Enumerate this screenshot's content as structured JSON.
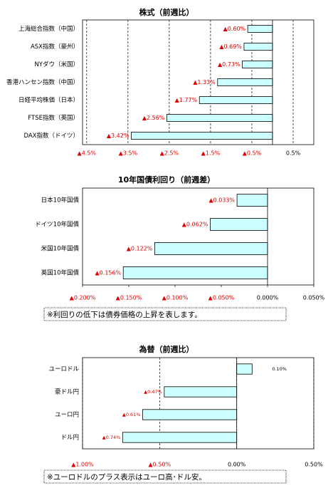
{
  "chart_data": [
    {
      "type": "bar",
      "title": "株式（前週比）",
      "orientation": "horizontal",
      "categories": [
        "上海総合指数（中国）",
        "ASX指数（豪州）",
        "NYダウ（米国）",
        "香港ハンセン指数（中国）",
        "日経平均株価（日本）",
        "FTSE指数（英国）",
        "DAX指数（ドイツ）"
      ],
      "values": [
        -0.6,
        -0.69,
        -0.73,
        -1.33,
        -1.77,
        -2.56,
        -3.42
      ],
      "value_labels": [
        "▲0.60%",
        "▲0.69%",
        "▲0.73%",
        "▲1.33%",
        "▲1.77%",
        "▲2.56%",
        "▲3.42%"
      ],
      "color": "#ccffff",
      "xlim": [
        -4.6,
        1.0
      ],
      "xticks": [
        {
          "value": -4.5,
          "label": "▲4.5%"
        },
        {
          "value": -3.5,
          "label": "▲3.5%"
        },
        {
          "value": -2.5,
          "label": "▲2.5%"
        },
        {
          "value": -1.5,
          "label": "▲1.5%"
        },
        {
          "value": -0.5,
          "label": "▲0.5%"
        },
        {
          "value": 0.5,
          "label": "0.5%"
        }
      ],
      "grid": true
    },
    {
      "type": "bar",
      "title": "10年国債利回り（前週差）",
      "orientation": "horizontal",
      "categories": [
        "日本10年国債",
        "ドイツ10年国債",
        "米国10年国債",
        "英国10年国債"
      ],
      "values": [
        -0.033,
        -0.062,
        -0.122,
        -0.156
      ],
      "value_labels": [
        "▲0.033%",
        "▲0.062%",
        "▲0.122%",
        "▲0.156%"
      ],
      "color": "#ccffff",
      "xlim": [
        -0.2,
        0.05
      ],
      "xticks": [
        {
          "value": -0.2,
          "label": "▲0.200%"
        },
        {
          "value": -0.15,
          "label": "▲0.150%"
        },
        {
          "value": -0.1,
          "label": "▲0.100%"
        },
        {
          "value": -0.05,
          "label": "▲0.050%"
        },
        {
          "value": 0,
          "label": "0.000%"
        },
        {
          "value": 0.05,
          "label": "0.050%"
        }
      ],
      "grid": false,
      "note": "※利回りの低下は債券価格の上昇を表します。"
    },
    {
      "type": "bar",
      "title": "為替（前週比）",
      "orientation": "horizontal",
      "categories": [
        "ユーロドル",
        "豪ドル円",
        "ユーロ円",
        "ドル円"
      ],
      "values": [
        0.1,
        -0.47,
        -0.61,
        -0.74
      ],
      "value_labels": [
        "0.10%",
        "▲0.47%",
        "▲0.61%",
        "▲0.74%"
      ],
      "color": "#ccffff",
      "xlim": [
        -1.0,
        0.5
      ],
      "xticks": [
        {
          "value": -1.0,
          "label": "▲1.00%"
        },
        {
          "value": -0.5,
          "label": "▲0.50%"
        },
        {
          "value": 0,
          "label": "0.00%"
        },
        {
          "value": 0.5,
          "label": "0.50%"
        }
      ],
      "grid": true,
      "note": "※ユーロドルのプラス表示はユーロ高･ドル安。"
    }
  ]
}
